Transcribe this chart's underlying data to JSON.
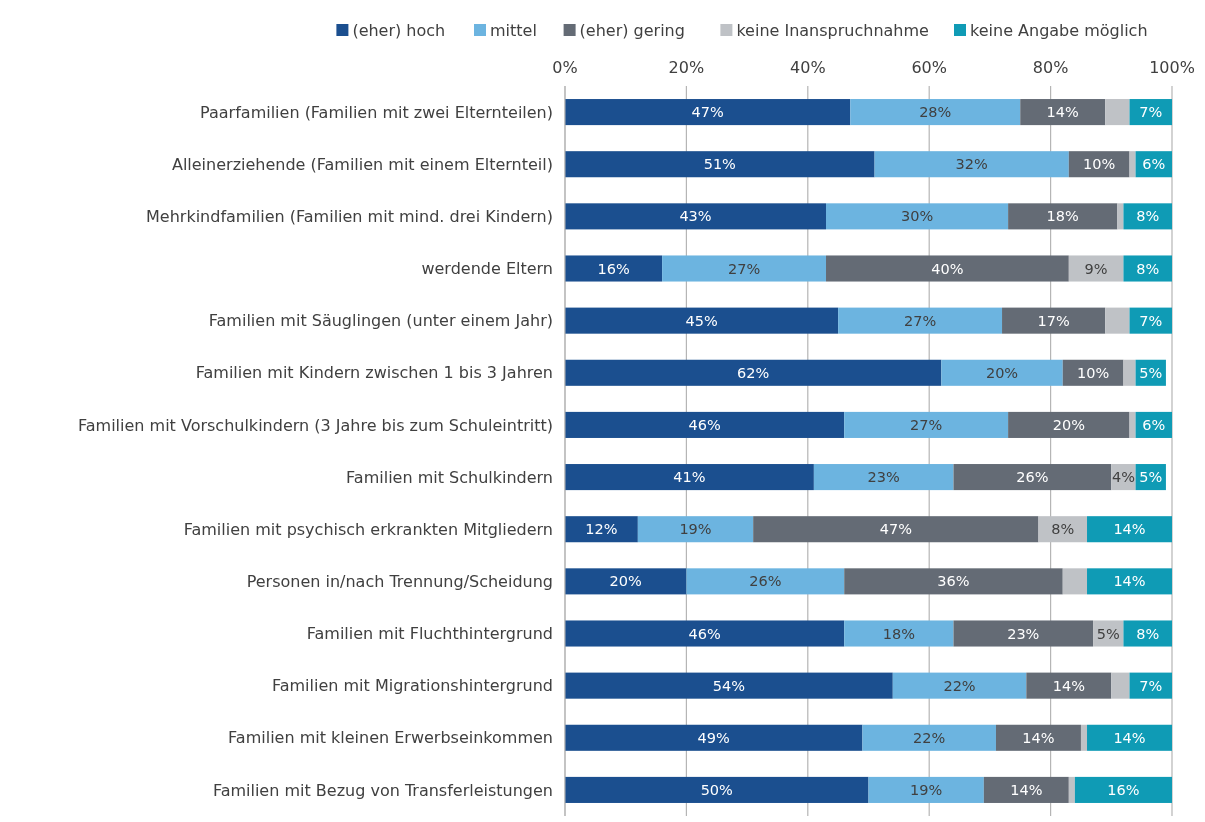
{
  "chart_data": {
    "type": "bar",
    "orientation": "horizontal",
    "stacked": true,
    "legend": "top",
    "grid": "x",
    "categories": [
      "Paarfamilien (Familien mit zwei Elternteilen)",
      "Alleinerziehende (Familien mit einem Elternteil)",
      "Mehrkindfamilien (Familien mit mind. drei Kindern)",
      "werdende Eltern",
      "Familien mit Säuglingen (unter einem Jahr)",
      "Familien mit Kindern zwischen 1 bis 3 Jahren",
      "Familien mit Vorschulkindern (3 Jahre bis zum Schuleintritt)",
      "Familien mit Schulkindern",
      "Familien mit psychisch erkrankten Mitgliedern",
      "Personen in/nach Trennung/Scheidung",
      "Familien mit Fluchthintergrund",
      "Familien mit Migrationshintergrund",
      "Familien mit kleinen Erwerbseinkommen",
      "Familien mit Bezug von Transferleistungen"
    ],
    "xlim": [
      0,
      100
    ],
    "xticks": [
      {
        "value": 0,
        "label": "0%"
      },
      {
        "value": 20,
        "label": "20%"
      },
      {
        "value": 40,
        "label": "40%"
      },
      {
        "value": 60,
        "label": "60%"
      },
      {
        "value": 80,
        "label": "80%"
      },
      {
        "value": 100,
        "label": "100%"
      }
    ],
    "series": [
      {
        "name": "(eher) hoch",
        "color": "#1b4f8f",
        "values": [
          47,
          51,
          43,
          16,
          45,
          62,
          46,
          41,
          12,
          20,
          46,
          54,
          49,
          50
        ],
        "value_labels": [
          "47%",
          "51%",
          "43%",
          "16%",
          "45%",
          "62%",
          "46%",
          "41%",
          "12%",
          "20%",
          "46%",
          "54%",
          "49%",
          "50%"
        ]
      },
      {
        "name": "mittel",
        "color": "#6cb4e0",
        "values": [
          28,
          32,
          30,
          27,
          27,
          20,
          27,
          23,
          19,
          26,
          18,
          22,
          22,
          19
        ],
        "value_labels": [
          "28%",
          "32%",
          "30%",
          "27%",
          "27%",
          "20%",
          "27%",
          "23%",
          "19%",
          "26%",
          "18%",
          "22%",
          "22%",
          "19%"
        ]
      },
      {
        "name": "(eher) gering",
        "color": "#646b75",
        "values": [
          14,
          10,
          18,
          40,
          17,
          10,
          20,
          26,
          47,
          36,
          23,
          14,
          14,
          14
        ],
        "value_labels": [
          "14%",
          "10%",
          "18%",
          "40%",
          "17%",
          "10%",
          "20%",
          "26%",
          "47%",
          "36%",
          "23%",
          "14%",
          "14%",
          "14%"
        ]
      },
      {
        "name": "keine Inanspruchnahme",
        "color": "#bfc2c6",
        "values": [
          4,
          1,
          1,
          9,
          4,
          2,
          1,
          4,
          8,
          4,
          5,
          3,
          1,
          1
        ],
        "value_labels": [
          null,
          null,
          null,
          "9%",
          null,
          null,
          null,
          "4%",
          "8%",
          null,
          "5%",
          null,
          null,
          null
        ]
      },
      {
        "name": "keine Angabe möglich",
        "color": "#0f9bb5",
        "values": [
          7,
          6,
          8,
          8,
          7,
          5,
          6,
          5,
          14,
          14,
          8,
          7,
          14,
          16
        ],
        "value_labels": [
          "7%",
          "6%",
          "8%",
          "8%",
          "7%",
          "5%",
          "6%",
          "5%",
          "14%",
          "14%",
          "8%",
          "7%",
          "14%",
          "16%"
        ]
      }
    ]
  }
}
